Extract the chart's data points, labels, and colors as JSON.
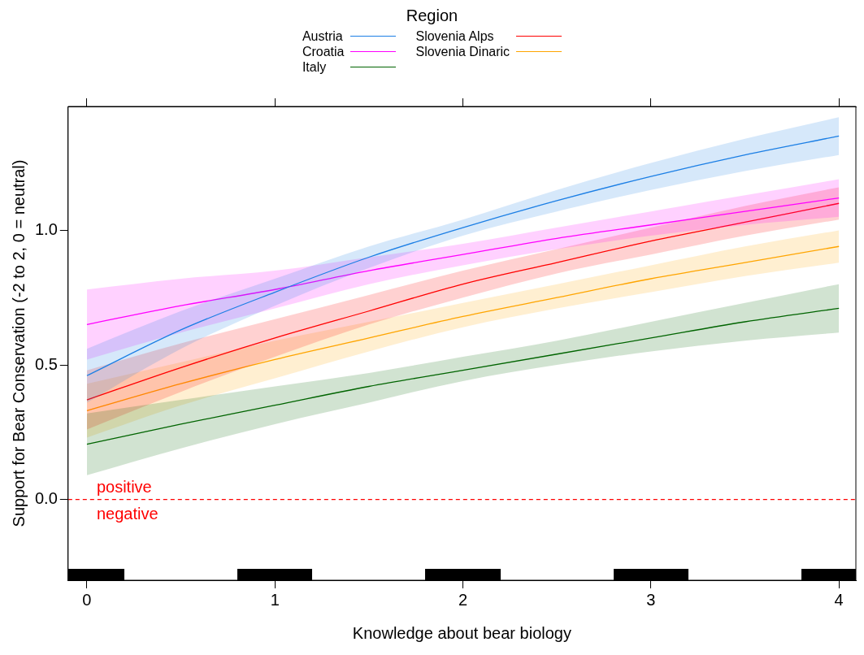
{
  "chart_data": {
    "type": "line",
    "xlabel": "Knowledge about bear biology",
    "ylabel": "Support for Bear Conservation (-2 to 2, 0 = neutral)",
    "legend_title": "Region",
    "legend": "top",
    "x": [
      0,
      0.5,
      1,
      1.5,
      2,
      2.5,
      3,
      3.5,
      4
    ],
    "series": [
      {
        "name": "Austria",
        "color": "#1c7fe6",
        "values": [
          0.46,
          0.63,
          0.77,
          0.9,
          1.01,
          1.11,
          1.2,
          1.28,
          1.35
        ],
        "lower": [
          0.36,
          0.56,
          0.72,
          0.86,
          0.98,
          1.07,
          1.15,
          1.22,
          1.28
        ],
        "upper": [
          0.56,
          0.7,
          0.82,
          0.94,
          1.04,
          1.15,
          1.25,
          1.34,
          1.42
        ]
      },
      {
        "name": "Croatia",
        "color": "#ff00ff",
        "values": [
          0.65,
          0.72,
          0.78,
          0.85,
          0.91,
          0.97,
          1.02,
          1.07,
          1.12
        ],
        "lower": [
          0.52,
          0.62,
          0.71,
          0.8,
          0.87,
          0.93,
          0.98,
          1.02,
          1.05
        ],
        "upper": [
          0.78,
          0.82,
          0.85,
          0.9,
          0.95,
          1.01,
          1.07,
          1.13,
          1.19
        ]
      },
      {
        "name": "Italy",
        "color": "#006400",
        "values": [
          0.205,
          0.28,
          0.35,
          0.42,
          0.48,
          0.54,
          0.6,
          0.66,
          0.71
        ],
        "lower": [
          0.09,
          0.19,
          0.28,
          0.36,
          0.44,
          0.5,
          0.55,
          0.59,
          0.62
        ],
        "upper": [
          0.32,
          0.37,
          0.42,
          0.47,
          0.53,
          0.59,
          0.66,
          0.73,
          0.8
        ]
      },
      {
        "name": "Slovenia Alps",
        "color": "#ff0000",
        "values": [
          0.37,
          0.49,
          0.6,
          0.7,
          0.8,
          0.88,
          0.96,
          1.03,
          1.1
        ],
        "lower": [
          0.26,
          0.4,
          0.53,
          0.65,
          0.75,
          0.84,
          0.91,
          0.98,
          1.04
        ],
        "upper": [
          0.48,
          0.58,
          0.67,
          0.76,
          0.85,
          0.93,
          1.01,
          1.09,
          1.16
        ]
      },
      {
        "name": "Slovenia Dinaric",
        "color": "#ffa500",
        "values": [
          0.33,
          0.43,
          0.52,
          0.6,
          0.68,
          0.75,
          0.82,
          0.88,
          0.94
        ],
        "lower": [
          0.23,
          0.35,
          0.45,
          0.55,
          0.64,
          0.71,
          0.77,
          0.83,
          0.88
        ],
        "upper": [
          0.43,
          0.51,
          0.59,
          0.66,
          0.73,
          0.8,
          0.87,
          0.94,
          1.0
        ]
      }
    ],
    "xlim": [
      -0.1,
      4.09
    ],
    "xticks": [
      0,
      1,
      2,
      3,
      4
    ],
    "ylim": [
      -0.3,
      1.46
    ],
    "yticks": [
      {
        "value": 0,
        "label": "0.0"
      },
      0.5,
      {
        "value": 1,
        "label": "1.0"
      }
    ],
    "ref_lines": [
      {
        "axis": "y",
        "value": 0,
        "color": "#ff0000",
        "line_style": "dashed"
      }
    ],
    "annotations": [
      "positive",
      "negative"
    ],
    "grid": false,
    "marker": "none",
    "line_style": "solid"
  }
}
